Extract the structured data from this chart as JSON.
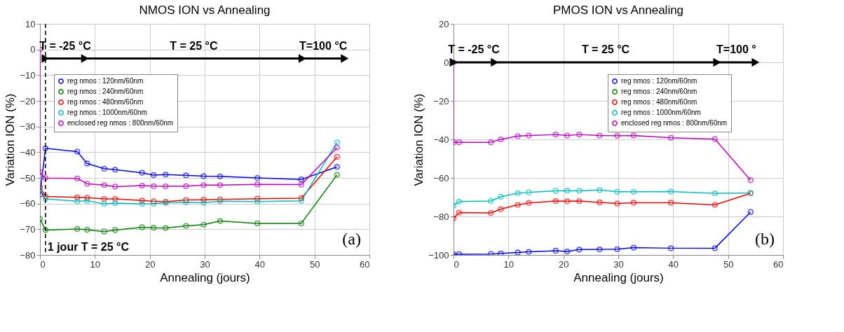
{
  "chart_data": [
    {
      "type": "line",
      "title": "NMOS ION vs Annealing",
      "xlabel": "Annealing (jours)",
      "ylabel": "Variation ION (%)",
      "xlim": [
        0,
        60
      ],
      "xticks": [
        0,
        10,
        20,
        30,
        40,
        50,
        60
      ],
      "ylim": [
        -80,
        10
      ],
      "yticks": [
        -80,
        -70,
        -60,
        -50,
        -40,
        -30,
        -20,
        -10,
        0,
        10
      ],
      "grid": true,
      "legend": "top left",
      "marker": "circle",
      "line_style": "solid",
      "x": [
        0,
        1,
        6.8,
        8.6,
        11.7,
        13.7,
        18.6,
        20.7,
        22.9,
        26.6,
        29.8,
        32.8,
        39.6,
        47.6,
        54.1
      ],
      "series": [
        {
          "name": "reg nmos : 120nm/60nm",
          "color": "#0000ff",
          "values": [
            -56.5,
            -38.5,
            -39.8,
            -44.4,
            -46.4,
            -46.8,
            -48,
            -48.9,
            -48.7,
            -49,
            -49.3,
            -49.4,
            -50,
            -50.6,
            -45.7
          ]
        },
        {
          "name": "reg nmos : 240nm/60nm",
          "color": "#008000",
          "values": [
            -66,
            -70.3,
            -69.9,
            -70.2,
            -70.9,
            -70.3,
            -69.2,
            -69.4,
            -69.5,
            -68.7,
            -68.2,
            -66.8,
            -67.7,
            -67.7,
            -48.8
          ]
        },
        {
          "name": "reg nmos : 480nm/60nm",
          "color": "#ff0000",
          "values": [
            -53.5,
            -57.2,
            -57.6,
            -57.7,
            -58.2,
            -58.2,
            -58.8,
            -59.1,
            -59.3,
            -58.6,
            -58.5,
            -58.4,
            -58.1,
            -57.9,
            -41.8
          ]
        },
        {
          "name": "reg nmos : 1000nm/60nm",
          "color": "#00bfbf",
          "values": [
            -54.6,
            -58.2,
            -59.1,
            -58.9,
            -60.1,
            -59.8,
            -60.1,
            -60,
            -59.7,
            -59.5,
            -59.7,
            -59.1,
            -59.2,
            -58.9,
            -36.2
          ]
        },
        {
          "name": "enclosed reg nmos : 800nm/60nm",
          "color": "#bf00bf",
          "x": [
            0,
            0,
            1,
            6.8,
            8.6,
            11.7,
            13.7,
            18.6,
            20.7,
            22.9,
            26.6,
            29.8,
            32.8,
            39.6,
            47.6,
            54.1
          ],
          "values": [
            0,
            -47.8,
            -50.1,
            -50.2,
            -52.3,
            -52.8,
            -53.4,
            -53,
            -53.2,
            -53.3,
            -53.2,
            -52.8,
            -52.8,
            -52.5,
            -52.6,
            -38.2
          ]
        },
        {
          "type": "line",
          "color": "#000000",
          "marker": "triangle",
          "x": [
            1,
            8.2,
            47.8,
            55.5
          ],
          "values": [
            -3.5,
            -3.5,
            -3.5,
            -3.5
          ]
        }
      ],
      "ref_lines": [
        {
          "axis": "x",
          "value": 1,
          "label": "1 jour T = 25 °C",
          "color": "#000000",
          "line_style": "dashed"
        }
      ],
      "annotations": [
        {
          "text": "T = -25 °C",
          "x": 4.6,
          "y": -3.5
        },
        {
          "text": "T = 25 °C",
          "x": 28,
          "y": -3.5
        },
        {
          "text": "T=100 °C",
          "x": 51.6,
          "y": -3.5
        },
        "(a)"
      ]
    },
    {
      "type": "line",
      "title": "PMOS ION vs Annealing",
      "xlabel": "Annealing (jours)",
      "ylabel": "Variation ION (%)",
      "xlim": [
        0,
        60
      ],
      "xticks": [
        0,
        10,
        20,
        30,
        40,
        50,
        60
      ],
      "ylim": [
        -100,
        20
      ],
      "yticks": [
        -100,
        -80,
        -60,
        -40,
        -20,
        0,
        20
      ],
      "grid": true,
      "legend": "top right",
      "marker": "circle",
      "line_style": "solid",
      "x": [
        0,
        1,
        6.8,
        8.6,
        11.7,
        13.7,
        18.6,
        20.7,
        22.9,
        26.6,
        29.8,
        32.8,
        39.6,
        47.6,
        54.1
      ],
      "series": [
        {
          "name": "reg nmos : 120nm/60nm",
          "color": "#0000ff",
          "values": [
            -99.7,
            -99.6,
            -99.5,
            -99.2,
            -98.7,
            -98.4,
            -97.8,
            -98.2,
            -97.2,
            -97.1,
            -97,
            -96.2,
            -96.5,
            -96.5,
            -77.7
          ]
        },
        {
          "name": "reg nmos : 240nm/60nm",
          "color": "#008000",
          "values": [
            null,
            null,
            null,
            null,
            null,
            null,
            null,
            null,
            null,
            null,
            null,
            null,
            null,
            null,
            null
          ]
        },
        {
          "name": "reg nmos : 480nm/60nm",
          "color": "#ff0000",
          "values": [
            -81,
            -78,
            -78.2,
            -76.2,
            -74,
            -73,
            -72,
            -72.1,
            -72,
            -72.7,
            -73.3,
            -72.9,
            -72.9,
            -74,
            -68
          ]
        },
        {
          "name": "reg nmos : 1000nm/60nm",
          "color": "#00bfbf",
          "values": [
            -74.3,
            -72.3,
            -72,
            -69.8,
            -67.9,
            -67.5,
            -66.7,
            -66.6,
            -66.7,
            -66.3,
            -67.2,
            -67.2,
            -67.1,
            -68,
            -67.8
          ]
        },
        {
          "name": "enclosed reg nmos : 800nm/60nm",
          "color": "#bf00bf",
          "x": [
            0,
            0,
            1,
            6.8,
            8.6,
            11.7,
            13.7,
            18.6,
            20.7,
            22.9,
            26.6,
            29.8,
            32.8,
            39.6,
            47.6,
            54.1
          ],
          "values": [
            0,
            -41.5,
            -41.5,
            -41.5,
            -40,
            -38.3,
            -38,
            -37.5,
            -38,
            -37.5,
            -38,
            -38.1,
            -38,
            -39.2,
            -39.8,
            -61.2
          ]
        },
        {
          "type": "line",
          "color": "#000000",
          "marker": "triangle",
          "x": [
            0,
            7.5,
            48,
            55
          ],
          "values": [
            0,
            0,
            0,
            0
          ]
        }
      ],
      "annotations": [
        {
          "text": "T = -25 °C",
          "x": 3.7,
          "y": 0
        },
        {
          "text": "T = 25 °C",
          "x": 27.7,
          "y": 0
        },
        {
          "text": "T=100 °",
          "x": 51.5,
          "y": 0
        },
        "(b)"
      ]
    }
  ]
}
